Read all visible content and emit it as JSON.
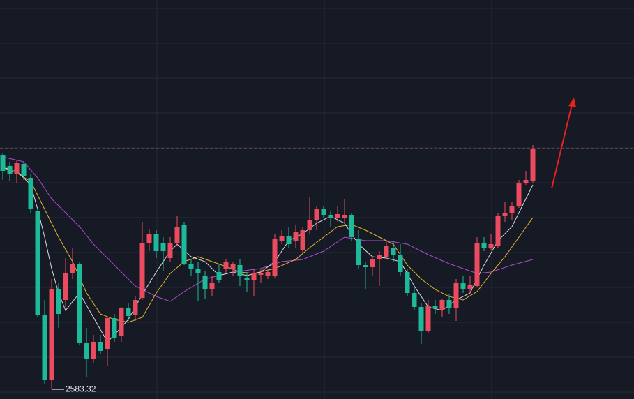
{
  "chart_data": {
    "type": "candlestick",
    "open": [
      2851.4,
      2838.6,
      2829.0,
      2841.0,
      2825.0,
      2787.4,
      2667.4,
      2593.0,
      2697.0,
      2685.0,
      2715.4,
      2726.6,
      2635.4,
      2617.0,
      2637.0,
      2629.0,
      2664.2,
      2643.4,
      2675.4,
      2667.4,
      2687.4,
      2750.6,
      2761.0,
      2750.6,
      2733.0,
      2750.6,
      2771.4,
      2726.6,
      2721.0,
      2713.0,
      2697.0,
      2717.0,
      2721.0,
      2721.0,
      2725.0,
      2710.6,
      2707.4,
      2713.8,
      2713.0,
      2713.0,
      2753.0,
      2758.6,
      2753.0,
      2742.6,
      2765.0,
      2777.0,
      2789.0,
      2782.6,
      2779.4,
      2779.4,
      2782.6,
      2755.4,
      2725.0,
      2722.6,
      2731.4,
      2734.6,
      2745.0,
      2737.0,
      2717.0,
      2693.0,
      2677.0,
      2649.0,
      2678.6,
      2673.0,
      2685.0,
      2675.4,
      2705.0,
      2697.0,
      2701.0,
      2750.6,
      2745.0,
      2747.4,
      2781.0,
      2785.0,
      2793.0,
      2819.4,
      2821.0
    ],
    "high": [
      2853.0,
      2843.4,
      2845.0,
      2843.4,
      2829.0,
      2790.6,
      2685.0,
      2709.0,
      2705.0,
      2733.0,
      2745.0,
      2729.0,
      2653.0,
      2645.0,
      2645.0,
      2665.0,
      2669.0,
      2677.0,
      2681.0,
      2689.0,
      2774.6,
      2766.6,
      2765.0,
      2757.0,
      2757.0,
      2781.0,
      2774.6,
      2731.4,
      2729.0,
      2718.6,
      2713.0,
      2726.6,
      2731.4,
      2729.0,
      2731.4,
      2717.0,
      2721.0,
      2721.0,
      2721.0,
      2761.0,
      2765.0,
      2769.0,
      2771.4,
      2769.0,
      2803.4,
      2793.0,
      2793.0,
      2787.4,
      2793.0,
      2801.0,
      2785.0,
      2765.0,
      2729.0,
      2734.6,
      2741.0,
      2753.0,
      2753.0,
      2749.0,
      2721.0,
      2701.0,
      2681.0,
      2685.0,
      2685.0,
      2686.6,
      2691.4,
      2709.0,
      2713.0,
      2713.0,
      2757.0,
      2757.0,
      2761.0,
      2785.0,
      2797.0,
      2797.0,
      2822.6,
      2833.0,
      2862.6
    ],
    "low": [
      2822.6,
      2821.0,
      2819.4,
      2822.6,
      2785.0,
      2665.0,
      2589.0,
      2583.32,
      2653.0,
      2677.0,
      2709.0,
      2633.0,
      2597.0,
      2613.0,
      2622.6,
      2609.0,
      2637.0,
      2637.0,
      2661.0,
      2661.0,
      2685.0,
      2741.0,
      2733.0,
      2718.6,
      2729.0,
      2747.4,
      2725.0,
      2713.0,
      2683.4,
      2686.6,
      2689.0,
      2705.0,
      2715.4,
      2713.0,
      2701.0,
      2694.6,
      2689.0,
      2705.0,
      2709.0,
      2710.6,
      2749.0,
      2745.0,
      2745.0,
      2739.4,
      2761.0,
      2765.0,
      2779.4,
      2769.0,
      2774.6,
      2773.0,
      2753.0,
      2721.0,
      2697.0,
      2713.0,
      2701.0,
      2731.4,
      2729.0,
      2713.0,
      2689.0,
      2673.0,
      2634.6,
      2646.6,
      2669.0,
      2665.0,
      2669.0,
      2661.0,
      2693.0,
      2693.0,
      2699.4,
      2741.0,
      2742.6,
      2745.0,
      2774.6,
      2777.0,
      2790.6,
      2817.0,
      2819.4
    ],
    "close": [
      2833.0,
      2829.0,
      2841.8,
      2826.6,
      2789.0,
      2667.4,
      2593.0,
      2697.0,
      2669.0,
      2715.4,
      2726.6,
      2635.4,
      2617.0,
      2637.0,
      2626.6,
      2664.2,
      2641.0,
      2675.4,
      2666.6,
      2685.0,
      2750.6,
      2761.0,
      2741.0,
      2741.0,
      2750.6,
      2769.0,
      2726.6,
      2721.0,
      2715.4,
      2697.0,
      2705.0,
      2707.4,
      2729.0,
      2726.6,
      2713.0,
      2707.4,
      2715.4,
      2715.4,
      2717.0,
      2755.4,
      2758.6,
      2749.0,
      2763.4,
      2765.0,
      2777.0,
      2789.0,
      2782.6,
      2779.4,
      2783.4,
      2782.6,
      2757.0,
      2725.0,
      2722.6,
      2731.4,
      2737.0,
      2747.4,
      2737.0,
      2717.0,
      2693.0,
      2677.0,
      2649.0,
      2678.6,
      2675.4,
      2685.0,
      2675.4,
      2705.0,
      2697.0,
      2702.6,
      2750.6,
      2745.0,
      2749.0,
      2781.0,
      2785.0,
      2793.0,
      2819.4,
      2822.6,
      2858.6
    ],
    "up_color": "#eb4b5f",
    "down_color": "#1db99b",
    "xlim": [
      -0.4,
      90.5
    ],
    "ylim": [
      2571.4,
      3029
    ],
    "lines": [
      {
        "color": "#b04ad0",
        "x": [
          0,
          3,
          5,
          7,
          9,
          11,
          13,
          16,
          19,
          22,
          24,
          26,
          29,
          33,
          37,
          40,
          43,
          46,
          49,
          52,
          55,
          58,
          61,
          64,
          66,
          68,
          70,
          73,
          76
        ],
        "values": [
          2849.0,
          2843.4,
          2825.0,
          2801.0,
          2785.0,
          2769.0,
          2749.0,
          2725.0,
          2701.0,
          2689.0,
          2683.4,
          2694.6,
          2709.0,
          2717.0,
          2721.0,
          2729.0,
          2731.4,
          2741.0,
          2757.0,
          2753.0,
          2753.0,
          2749.0,
          2737.0,
          2726.6,
          2721.0,
          2715.4,
          2717.0,
          2725.0,
          2731.4
        ]
      },
      {
        "color": "#e5b531",
        "x": [
          0,
          2,
          4,
          6,
          8,
          10,
          12,
          14,
          16,
          18,
          20,
          22,
          24,
          26,
          28,
          30,
          32,
          34,
          36,
          39,
          42,
          44,
          46,
          48,
          50,
          52,
          54,
          56,
          58,
          60,
          62,
          64,
          66,
          68,
          70,
          72,
          74,
          76
        ],
        "values": [
          2837.0,
          2830.6,
          2821.0,
          2789.0,
          2757.0,
          2729.0,
          2693.0,
          2669.0,
          2662.6,
          2659.4,
          2665.0,
          2693.0,
          2715.4,
          2729.0,
          2734.6,
          2729.0,
          2723.4,
          2717.0,
          2715.4,
          2721.0,
          2731.4,
          2745.0,
          2757.0,
          2769.0,
          2771.4,
          2765.0,
          2757.0,
          2749.0,
          2725.0,
          2709.0,
          2697.0,
          2689.0,
          2685.0,
          2694.6,
          2715.4,
          2734.6,
          2757.0,
          2779.4
        ]
      },
      {
        "color": "#d8dbe2",
        "x": [
          0,
          2,
          4,
          5,
          6,
          7,
          8,
          9,
          11,
          13,
          15,
          16,
          18,
          20,
          22,
          24,
          25,
          27,
          29,
          31,
          33,
          35,
          37,
          39,
          41,
          43,
          45,
          47,
          49,
          51,
          53,
          55,
          57,
          59,
          61,
          63,
          65,
          67,
          69,
          71,
          73,
          75,
          76
        ],
        "values": [
          2837.0,
          2833.0,
          2817.0,
          2789.0,
          2757.0,
          2721.0,
          2693.0,
          2673.0,
          2693.0,
          2665.0,
          2637.0,
          2645.0,
          2662.6,
          2691.4,
          2717.0,
          2741.0,
          2749.0,
          2734.6,
          2729.0,
          2713.0,
          2717.0,
          2713.0,
          2717.0,
          2729.0,
          2753.0,
          2761.0,
          2773.0,
          2781.0,
          2773.0,
          2749.0,
          2734.6,
          2733.0,
          2729.0,
          2701.0,
          2677.0,
          2673.0,
          2685.0,
          2693.0,
          2725.0,
          2753.0,
          2769.0,
          2801.0,
          2817.0
        ]
      }
    ]
  }
}
